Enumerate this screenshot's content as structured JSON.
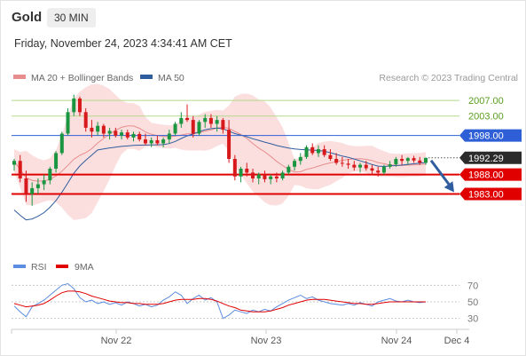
{
  "header": {
    "symbol": "Gold",
    "timeframe": "30 MIN",
    "datetime": "Friday, November 24, 2023 4:34:41 AM CET"
  },
  "legend": {
    "ma20_bb": "MA 20 + Bollinger Bands",
    "ma50": "MA 50",
    "copyright": "Research © 2023 Trading Central",
    "rsi": "RSI",
    "rsi_ma": "9MA"
  },
  "colors": {
    "bull": "#1a9641",
    "bear": "#d7191c",
    "band": "#f7c5c5",
    "ma20": "#e88d8d",
    "ma50": "#2f5d9e",
    "resistance_green": "#b5d98a",
    "blue_level": "#2f5fd6",
    "red_level": "#e00000",
    "rsi": "#5b8de0",
    "rsi_ma": "#e00000"
  },
  "chart_data": [
    {
      "type": "candlestick",
      "title": "Gold",
      "timeframe": "30 MIN",
      "x_ticks": [
        "Nov 22",
        "Nov 23",
        "Nov 24",
        "Dec 4"
      ],
      "ylim": [
        1969,
        2010
      ],
      "current_price": 1992.29,
      "levels": [
        {
          "value": 2007.0,
          "label": "2007.00",
          "style": "green-text"
        },
        {
          "value": 2003.0,
          "label": "2003.00",
          "style": "green-text"
        },
        {
          "value": 1998.0,
          "label": "1998.00",
          "style": "blue-box"
        },
        {
          "value": 1988.0,
          "label": "1988.00",
          "style": "red-box"
        },
        {
          "value": 1983.0,
          "label": "1983.00",
          "style": "red-box"
        }
      ],
      "current_label": "1992.29",
      "forecast_arrow": {
        "from": 1992.29,
        "to": 1983.0,
        "direction": "down"
      },
      "series": [
        {
          "name": "MA 20 + Bollinger Bands",
          "role": "bollinger"
        },
        {
          "name": "MA 50",
          "role": "moving-average"
        }
      ],
      "candles": [
        [
          1990.5,
          1992,
          1989,
          1991.5
        ],
        [
          1991.5,
          1993,
          1986,
          1987
        ],
        [
          1987,
          1989,
          1981,
          1983
        ],
        [
          1983,
          1986,
          1980,
          1984.5
        ],
        [
          1984.5,
          1987,
          1983,
          1985.5
        ],
        [
          1985.5,
          1988,
          1984,
          1986.5
        ],
        [
          1986.5,
          1990,
          1985.5,
          1989.5
        ],
        [
          1989.5,
          1994,
          1988.5,
          1993.5
        ],
        [
          1993.5,
          1999,
          1993,
          1998.5
        ],
        [
          1998.5,
          2005,
          1998,
          2004
        ],
        [
          2004,
          2008.5,
          2003,
          2007.5
        ],
        [
          2007.5,
          2008,
          2003,
          2004
        ],
        [
          2004,
          2005,
          1999,
          2000
        ],
        [
          2000,
          2002,
          1997.5,
          1999
        ],
        [
          1999,
          2001.5,
          1998,
          2000.5
        ],
        [
          2000.5,
          2001,
          1997.5,
          1998.5
        ],
        [
          1998.5,
          2000,
          1997,
          1999.2
        ],
        [
          1999.2,
          2000,
          1997.5,
          1998
        ],
        [
          1998,
          1999.5,
          1997,
          1998.8
        ],
        [
          1998.8,
          1999.5,
          1997,
          1997.5
        ],
        [
          1997.5,
          1999,
          1996.5,
          1998.4
        ],
        [
          1998.4,
          1999,
          1996.5,
          1997
        ],
        [
          1997,
          1998.5,
          1995.5,
          1996
        ],
        [
          1996,
          1997.5,
          1995,
          1996.8
        ],
        [
          1996.8,
          1998,
          1995.5,
          1996
        ],
        [
          1996,
          1997.5,
          1995,
          1997
        ],
        [
          1997,
          1999.5,
          1996,
          1998.5
        ],
        [
          1998.5,
          2001.5,
          1998,
          2001
        ],
        [
          2001,
          2004,
          2000,
          2002.5
        ],
        [
          2002.5,
          2006,
          2001.5,
          2002
        ],
        [
          2002,
          2003,
          1997.5,
          1998.5
        ],
        [
          1998.5,
          2002,
          1998,
          2001.5
        ],
        [
          2001.5,
          2003.5,
          2000,
          2002.5
        ],
        [
          2002.5,
          2003.5,
          2000,
          2001
        ],
        [
          2001,
          2003,
          1999,
          2002
        ],
        [
          2002,
          2002.5,
          1998.5,
          1999.5
        ],
        [
          1999.5,
          2002,
          1991,
          1992
        ],
        [
          1992,
          1993,
          1986.5,
          1987.5
        ],
        [
          1987.5,
          1990,
          1986,
          1989.5
        ],
        [
          1989.5,
          1991,
          1987.5,
          1988.5
        ],
        [
          1988.5,
          1989.5,
          1986,
          1987
        ],
        [
          1987,
          1988.5,
          1985.5,
          1988
        ],
        [
          1988,
          1989,
          1986,
          1986.8
        ],
        [
          1986.8,
          1988,
          1985.5,
          1987.5
        ],
        [
          1987.5,
          1988.5,
          1986,
          1987
        ],
        [
          1987,
          1989,
          1986.5,
          1988.5
        ],
        [
          1988.5,
          1990.5,
          1988,
          1990
        ],
        [
          1990,
          1992,
          1989,
          1991.5
        ],
        [
          1991.5,
          1993.5,
          1990.5,
          1992.5
        ],
        [
          1992.5,
          1995.5,
          1992,
          1995
        ],
        [
          1995,
          1996,
          1993,
          1993.5
        ],
        [
          1993.5,
          1995.5,
          1992.5,
          1994.5
        ],
        [
          1994.5,
          1995.5,
          1992.5,
          1993
        ],
        [
          1993,
          1994.5,
          1991.5,
          1992
        ],
        [
          1992,
          1993.5,
          1990.5,
          1991
        ],
        [
          1991,
          1992.5,
          1990,
          1990.8
        ],
        [
          1990.8,
          1992,
          1989.5,
          1990.5
        ],
        [
          1990.5,
          1991.5,
          1989,
          1989.8
        ],
        [
          1989.8,
          1991,
          1988.5,
          1990.5
        ],
        [
          1990.5,
          1991.5,
          1989,
          1989.6
        ],
        [
          1989.6,
          1990.5,
          1988,
          1989
        ],
        [
          1989,
          1990,
          1987.5,
          1988.5
        ],
        [
          1988.5,
          1990.5,
          1988,
          1990
        ],
        [
          1990,
          1991.5,
          1989.5,
          1990.6
        ],
        [
          1990.6,
          1992.5,
          1990,
          1992
        ],
        [
          1992,
          1993,
          1990.5,
          1991.5
        ],
        [
          1991.5,
          1992.5,
          1990.5,
          1992.2
        ],
        [
          1992.2,
          1992.8,
          1991,
          1991.6
        ],
        [
          1991.6,
          1992.5,
          1990.5,
          1991
        ],
        [
          1991,
          1992.3,
          1990.5,
          1992.29
        ]
      ]
    },
    {
      "type": "line",
      "title": "RSI",
      "ylim": [
        20,
        80
      ],
      "y_ticks": [
        70,
        50,
        30
      ],
      "series": [
        {
          "name": "RSI",
          "values": [
            45,
            38,
            32,
            44,
            48,
            52,
            58,
            64,
            70,
            72,
            66,
            55,
            50,
            52,
            48,
            50,
            47,
            49,
            46,
            50,
            48,
            45,
            47,
            44,
            46,
            52,
            56,
            62,
            58,
            48,
            54,
            58,
            52,
            55,
            50,
            30,
            34,
            40,
            38,
            36,
            40,
            38,
            41,
            39,
            44,
            48,
            52,
            55,
            58,
            54,
            56,
            52,
            50,
            48,
            47,
            46,
            48,
            46,
            49,
            47,
            45,
            50,
            52,
            54,
            51,
            50,
            52,
            50,
            49,
            50
          ]
        },
        {
          "name": "9MA",
          "values": [
            48,
            46,
            44,
            45,
            46,
            48,
            52,
            57,
            61,
            63,
            63,
            62,
            60,
            57,
            55,
            53,
            51,
            50,
            49,
            49,
            48,
            48,
            47,
            47,
            47,
            48,
            50,
            52,
            53,
            53,
            53,
            54,
            54,
            53,
            51,
            48,
            45,
            43,
            40,
            39,
            38,
            38,
            38,
            39,
            41,
            43,
            46,
            48,
            50,
            52,
            53,
            53,
            53,
            52,
            51,
            50,
            49,
            48,
            48,
            47,
            47,
            48,
            49,
            50,
            50,
            50,
            50,
            50,
            50,
            50
          ]
        }
      ]
    }
  ]
}
